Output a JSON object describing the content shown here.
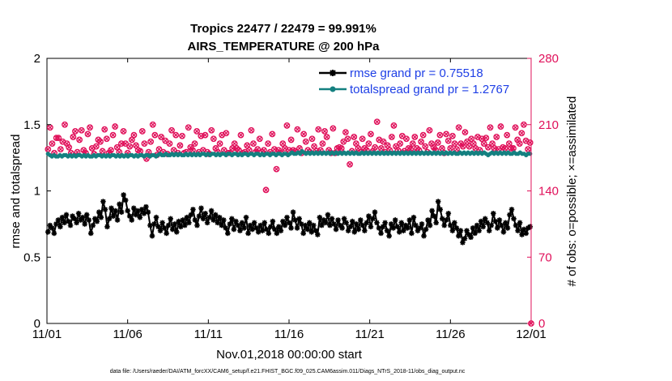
{
  "footer": {
    "datafile": "data file: /Users/raeder/DAI/ATM_forcXX/CAM6_setup/f.e21.FHIST_BGC.f09_025.CAM6assim.011/Diags_NTrS_2018-11/obs_diag_output.nc"
  },
  "colors": {
    "rmse": "#000000",
    "spread": "#148080",
    "obs": "#e0105a",
    "axis": "#000000"
  },
  "chart_data": {
    "type": "line",
    "title": [
      "Tropics 22477 / 22479 = 99.991%",
      "AIRS_TEMPERATURE @ 200 hPa"
    ],
    "xlabel": "Nov.01,2018 00:00:00 start",
    "ylabel": "rmse and totalspread",
    "y2label": "# of obs: o=possible; ×=assimilated",
    "xlim": [
      0,
      30
    ],
    "ylim": [
      0,
      2
    ],
    "y2lim": [
      0,
      280
    ],
    "xticks": [
      {
        "v": 0,
        "label": "11/01"
      },
      {
        "v": 5,
        "label": "11/06"
      },
      {
        "v": 10,
        "label": "11/11"
      },
      {
        "v": 15,
        "label": "11/16"
      },
      {
        "v": 20,
        "label": "11/21"
      },
      {
        "v": 25,
        "label": "11/26"
      },
      {
        "v": 30,
        "label": "12/01"
      }
    ],
    "yticks": [
      {
        "v": 0,
        "label": "0"
      },
      {
        "v": 0.5,
        "label": "0.5"
      },
      {
        "v": 1,
        "label": "1"
      },
      {
        "v": 1.5,
        "label": "1.5"
      },
      {
        "v": 2,
        "label": "2"
      }
    ],
    "y2ticks": [
      {
        "v": 0,
        "label": "0"
      },
      {
        "v": 70,
        "label": "70"
      },
      {
        "v": 140,
        "label": "140"
      },
      {
        "v": 210,
        "label": "210"
      },
      {
        "v": 280,
        "label": "280"
      }
    ],
    "legend_position": "top-right",
    "series": [
      {
        "name": "rmse",
        "legend": "rmse grand pr = 0.75518",
        "values": [
          0.69,
          0.74,
          0.72,
          0.68,
          0.75,
          0.78,
          0.73,
          0.8,
          0.76,
          0.82,
          0.77,
          0.74,
          0.81,
          0.79,
          0.76,
          0.83,
          0.78,
          0.8,
          0.75,
          0.82,
          0.78,
          0.68,
          0.74,
          0.79,
          0.77,
          0.84,
          0.8,
          0.92,
          0.86,
          0.73,
          0.79,
          0.87,
          0.81,
          0.85,
          0.78,
          0.9,
          0.84,
          0.97,
          0.93,
          0.85,
          0.81,
          0.78,
          0.87,
          0.82,
          0.85,
          0.8,
          0.86,
          0.83,
          0.88,
          0.84,
          0.74,
          0.66,
          0.75,
          0.8,
          0.73,
          0.7,
          0.76,
          0.72,
          0.68,
          0.74,
          0.79,
          0.71,
          0.75,
          0.69,
          0.77,
          0.73,
          0.78,
          0.74,
          0.8,
          0.76,
          0.82,
          0.86,
          0.78,
          0.74,
          0.81,
          0.87,
          0.79,
          0.83,
          0.76,
          0.8,
          0.85,
          0.78,
          0.82,
          0.76,
          0.8,
          0.74,
          0.78,
          0.72,
          0.68,
          0.75,
          0.79,
          0.71,
          0.77,
          0.74,
          0.7,
          0.76,
          0.72,
          0.8,
          0.68,
          0.74,
          0.71,
          0.76,
          0.72,
          0.69,
          0.74,
          0.7,
          0.76,
          0.71,
          0.68,
          0.73,
          0.77,
          0.71,
          0.68,
          0.73,
          0.7,
          0.77,
          0.74,
          0.8,
          0.76,
          0.72,
          0.84,
          0.78,
          0.72,
          0.79,
          0.75,
          0.68,
          0.74,
          0.71,
          0.76,
          0.69,
          0.74,
          0.7,
          0.67,
          0.8,
          0.74,
          0.78,
          0.76,
          0.82,
          0.74,
          0.79,
          0.75,
          0.71,
          0.78,
          0.74,
          0.72,
          0.79,
          0.76,
          0.7,
          0.73,
          0.77,
          0.69,
          0.75,
          0.71,
          0.78,
          0.74,
          0.7,
          0.76,
          0.81,
          0.73,
          0.79,
          0.84,
          0.76,
          0.72,
          0.68,
          0.73,
          0.76,
          0.7,
          0.66,
          0.75,
          0.72,
          0.78,
          0.73,
          0.69,
          0.76,
          0.7,
          0.74,
          0.72,
          0.78,
          0.68,
          0.8,
          0.74,
          0.7,
          0.72,
          0.75,
          0.66,
          0.71,
          0.78,
          0.74,
          0.85,
          0.81,
          0.76,
          0.92,
          0.86,
          0.79,
          0.74,
          0.78,
          0.83,
          0.74,
          0.7,
          0.76,
          0.72,
          0.66,
          0.7,
          0.61,
          0.64,
          0.7,
          0.67,
          0.65,
          0.72,
          0.68,
          0.74,
          0.7,
          0.77,
          0.73,
          0.79,
          0.76,
          0.7,
          0.74,
          0.83,
          0.77,
          0.72,
          0.78,
          0.74,
          0.69,
          0.76,
          0.72,
          0.82,
          0.86,
          0.79,
          0.74,
          0.7,
          0.76,
          0.67,
          0.71,
          0.68,
          0.72,
          0.73
        ]
      },
      {
        "name": "totalspread",
        "legend": "totalspread grand pr = 1.2767",
        "values": [
          1.28,
          1.27,
          1.26,
          1.27,
          1.26,
          1.26,
          1.27,
          1.26,
          1.27,
          1.27,
          1.26,
          1.27,
          1.26,
          1.27,
          1.26,
          1.27,
          1.27,
          1.26,
          1.27,
          1.26,
          1.27,
          1.26,
          1.26,
          1.27,
          1.26,
          1.27,
          1.27,
          1.26,
          1.27,
          1.26,
          1.27,
          1.26,
          1.27,
          1.27,
          1.26,
          1.27,
          1.26,
          1.27,
          1.26,
          1.27,
          1.26,
          1.27,
          1.27,
          1.26,
          1.27,
          1.26,
          1.27,
          1.27,
          1.26,
          1.27,
          1.27,
          1.26,
          1.27,
          1.27,
          1.26,
          1.27,
          1.28,
          1.27,
          1.27,
          1.28,
          1.27,
          1.27,
          1.28,
          1.27,
          1.28,
          1.27,
          1.28,
          1.27,
          1.27,
          1.28,
          1.27,
          1.28,
          1.27,
          1.28,
          1.27,
          1.28,
          1.27,
          1.28,
          1.28,
          1.27,
          1.28,
          1.27,
          1.28,
          1.28,
          1.27,
          1.28,
          1.27,
          1.28,
          1.28,
          1.27,
          1.28,
          1.28,
          1.27,
          1.28,
          1.28,
          1.27,
          1.28,
          1.27,
          1.28,
          1.28,
          1.27,
          1.28,
          1.28,
          1.27,
          1.28,
          1.28,
          1.27,
          1.28,
          1.27,
          1.28,
          1.28,
          1.27,
          1.28,
          1.28,
          1.27,
          1.28,
          1.28,
          1.27,
          1.28,
          1.28,
          1.27,
          1.28,
          1.29,
          1.28,
          1.28,
          1.29,
          1.28,
          1.3,
          1.29,
          1.28,
          1.29,
          1.28,
          1.29,
          1.28,
          1.29,
          1.28,
          1.29,
          1.28,
          1.29,
          1.28,
          1.29,
          1.28,
          1.29,
          1.28,
          1.29,
          1.28,
          1.29,
          1.28,
          1.29,
          1.28,
          1.29,
          1.28,
          1.29,
          1.28,
          1.29,
          1.28,
          1.28,
          1.29,
          1.28,
          1.29,
          1.28,
          1.29,
          1.28,
          1.29,
          1.28,
          1.29,
          1.28,
          1.29,
          1.28,
          1.29,
          1.28,
          1.29,
          1.28,
          1.29,
          1.28,
          1.29,
          1.28,
          1.29,
          1.28,
          1.29,
          1.28,
          1.29,
          1.28,
          1.29,
          1.28,
          1.29,
          1.28,
          1.29,
          1.28,
          1.29,
          1.28,
          1.29,
          1.28,
          1.29,
          1.28,
          1.29,
          1.28,
          1.29,
          1.28,
          1.29,
          1.28,
          1.29,
          1.28,
          1.29,
          1.28,
          1.28,
          1.29,
          1.28,
          1.29,
          1.28,
          1.29,
          1.28,
          1.29,
          1.28,
          1.29,
          1.28,
          1.29,
          1.28,
          1.29,
          1.28,
          1.27,
          1.28,
          1.29,
          1.28,
          1.29,
          1.28,
          1.29,
          1.28,
          1.29,
          1.28,
          1.29,
          1.28,
          1.28,
          1.29,
          1.28,
          1.28,
          1.29,
          1.28,
          1.28,
          1.27,
          1.28,
          1.28
        ]
      },
      {
        "name": "observations",
        "axis": "right",
        "values": [
          184,
          207,
          190,
          180,
          196,
          196,
          184,
          192,
          210,
          190,
          186,
          180,
          197,
          203,
          181,
          194,
          204,
          183,
          180,
          200,
          207,
          185,
          179,
          187,
          194,
          192,
          182,
          205,
          195,
          180,
          183,
          199,
          208,
          186,
          181,
          190,
          203,
          190,
          180,
          187,
          194,
          199,
          188,
          183,
          182,
          203,
          190,
          174,
          181,
          192,
          210,
          199,
          178,
          184,
          197,
          181,
          193,
          179,
          190,
          204,
          183,
          199,
          180,
          188,
          198,
          180,
          181,
          207,
          186,
          183,
          190,
          203,
          181,
          198,
          183,
          199,
          181,
          179,
          204,
          195,
          185,
          181,
          190,
          199,
          183,
          201,
          180,
          180,
          185,
          190,
          185,
          183,
          199,
          180,
          181,
          188,
          183,
          204,
          190,
          181,
          184,
          195,
          181,
          183,
          141,
          190,
          181,
          200,
          184,
          163,
          183,
          180,
          190,
          185,
          209,
          183,
          194,
          183,
          182,
          205,
          185,
          180,
          200,
          192,
          183,
          181,
          195,
          187,
          182,
          205,
          183,
          190,
          203,
          197,
          183,
          180,
          206,
          180,
          185,
          186,
          185,
          192,
          202,
          195,
          168,
          182,
          197,
          190,
          185,
          181,
          195,
          185,
          183,
          190,
          200,
          182,
          186,
          213,
          194,
          185,
          192,
          181,
          188,
          183,
          197,
          209,
          187,
          183,
          190,
          198,
          182,
          195,
          185,
          184,
          190,
          197,
          185,
          183,
          192,
          199,
          187,
          181,
          204,
          190,
          186,
          183,
          191,
          199,
          185,
          180,
          200,
          193,
          185,
          198,
          190,
          184,
          207,
          190,
          187,
          202,
          192,
          187,
          195,
          190,
          185,
          197,
          183,
          195,
          190,
          196,
          186,
          207,
          190,
          185,
          197,
          184,
          208,
          186,
          185,
          199,
          190,
          185,
          185,
          207,
          194,
          190,
          201,
          210,
          193,
          184,
          191,
          0
        ]
      }
    ]
  }
}
